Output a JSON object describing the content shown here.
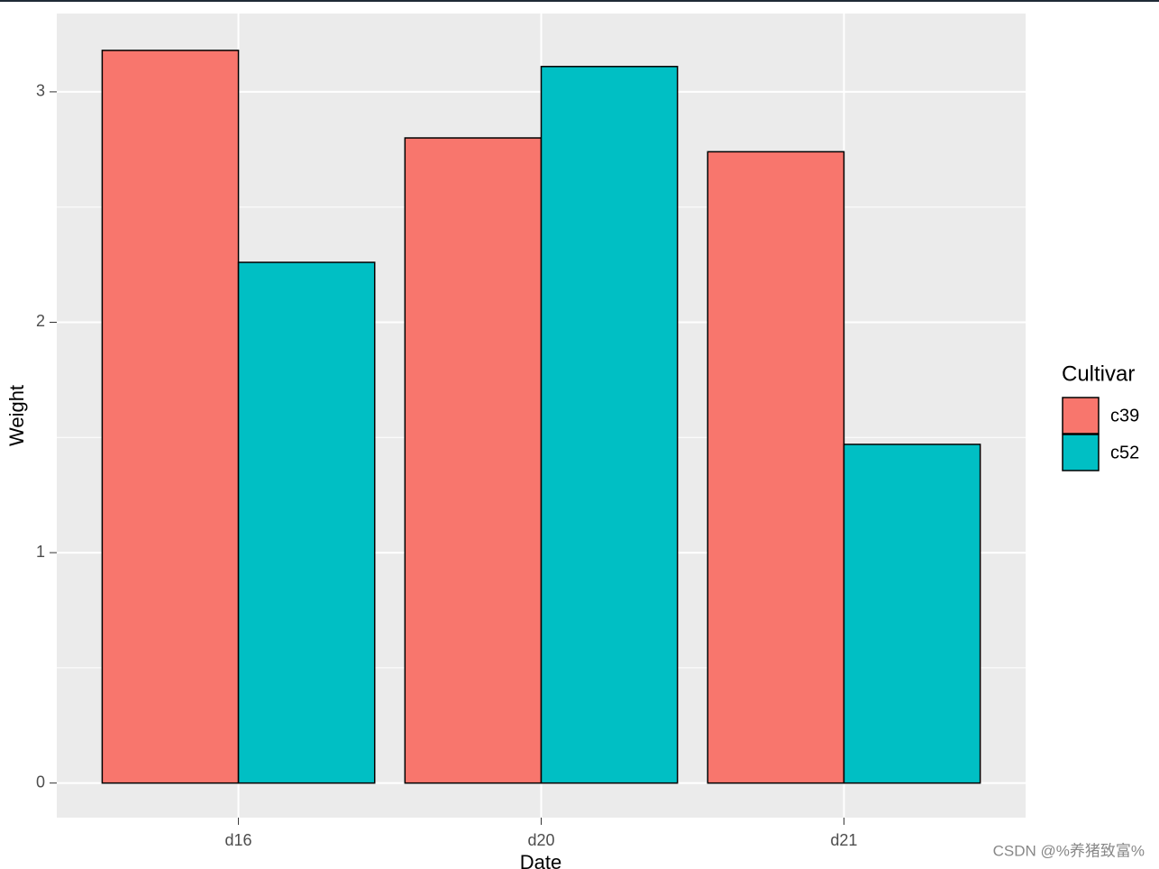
{
  "chart_data": {
    "type": "bar",
    "categories": [
      "d16",
      "d20",
      "d21"
    ],
    "series": [
      {
        "name": "c39",
        "color": "#F8766D",
        "values": [
          3.18,
          2.8,
          2.74
        ]
      },
      {
        "name": "c52",
        "color": "#00BFC4",
        "values": [
          2.26,
          3.11,
          1.47
        ]
      }
    ],
    "x_label": "Date",
    "y_label": "Weight",
    "legend_title": "Cultivar",
    "legend": "right",
    "ylim": [
      -0.15,
      3.34
    ],
    "yticks": [
      0,
      1,
      2,
      3
    ],
    "grid": true,
    "watermark": "CSDN @%养猪致富%"
  }
}
